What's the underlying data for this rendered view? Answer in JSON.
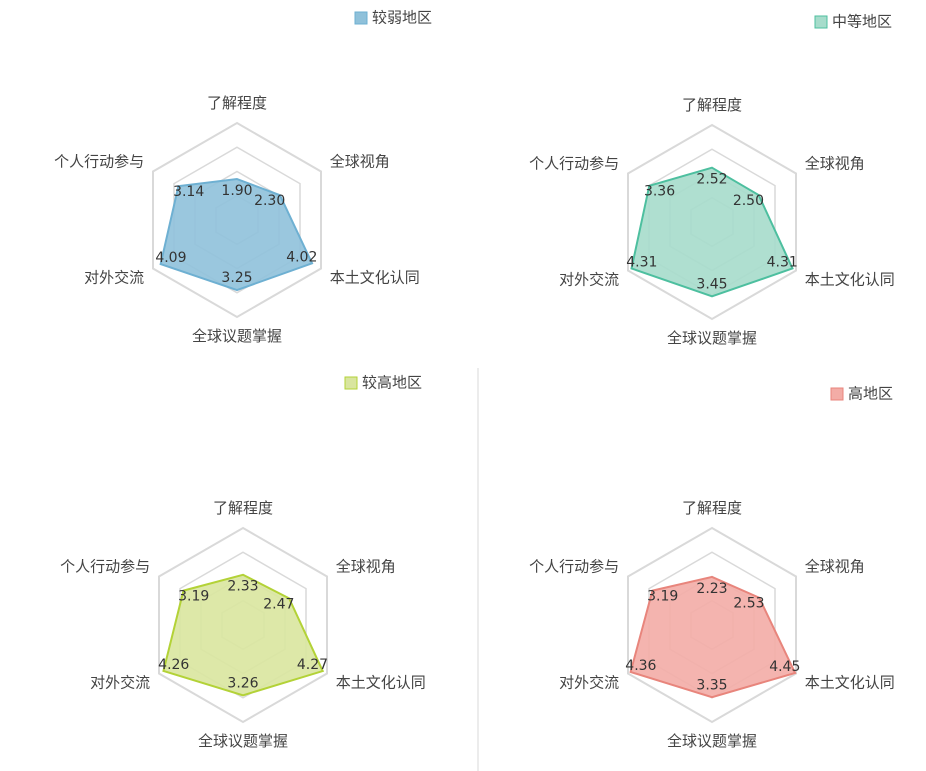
{
  "chart_data": [
    {
      "type": "radar",
      "legend": "较弱地区",
      "color": "#8fc1da",
      "stroke": "#6eb0d2",
      "categories": [
        "了解程度",
        "全球视角",
        "本土文化认同",
        "全球议题掌握",
        "对外交流",
        "个人行动参与"
      ],
      "values": [
        1.9,
        2.3,
        4.02,
        3.25,
        4.09,
        3.14
      ],
      "value_labels": [
        "1.90",
        "2.30",
        "4.02",
        "3.25",
        "4.09",
        "3.14"
      ],
      "rlim": [
        0,
        4.5
      ],
      "rticks": [
        1.125,
        2.25,
        3.375,
        4.5
      ]
    },
    {
      "type": "radar",
      "legend": "中等地区",
      "color": "#a6dccb",
      "stroke": "#4dbf9f",
      "categories": [
        "了解程度",
        "全球视角",
        "本土文化认同",
        "全球议题掌握",
        "对外交流",
        "个人行动参与"
      ],
      "values": [
        2.52,
        2.5,
        4.31,
        3.45,
        4.31,
        3.36
      ],
      "value_labels": [
        "2.52",
        "2.50",
        "4.31",
        "3.45",
        "4.31",
        "3.36"
      ],
      "rlim": [
        0,
        4.5
      ],
      "rticks": [
        1.125,
        2.25,
        3.375,
        4.5
      ]
    },
    {
      "type": "radar",
      "legend": "较高地区",
      "color": "#d9e59f",
      "stroke": "#b3d237",
      "categories": [
        "了解程度",
        "全球视角",
        "本土文化认同",
        "全球议题掌握",
        "对外交流",
        "个人行动参与"
      ],
      "values": [
        2.33,
        2.47,
        4.27,
        3.26,
        4.26,
        3.19
      ],
      "value_labels": [
        "2.33",
        "2.47",
        "4.27",
        "3.26",
        "4.26",
        "3.19"
      ],
      "rlim": [
        0,
        4.5
      ],
      "rticks": [
        1.125,
        2.25,
        3.375,
        4.5
      ]
    },
    {
      "type": "radar",
      "legend": "高地区",
      "color": "#f3aca6",
      "stroke": "#e8857c",
      "categories": [
        "了解程度",
        "全球视角",
        "本土文化认同",
        "全球议题掌握",
        "对外交流",
        "个人行动参与"
      ],
      "values": [
        2.23,
        2.53,
        4.45,
        3.35,
        4.36,
        3.19
      ],
      "value_labels": [
        "2.23",
        "2.53",
        "4.45",
        "3.35",
        "4.36",
        "3.19"
      ],
      "rlim": [
        0,
        4.5
      ],
      "rticks": [
        1.125,
        2.25,
        3.375,
        4.5
      ]
    }
  ]
}
